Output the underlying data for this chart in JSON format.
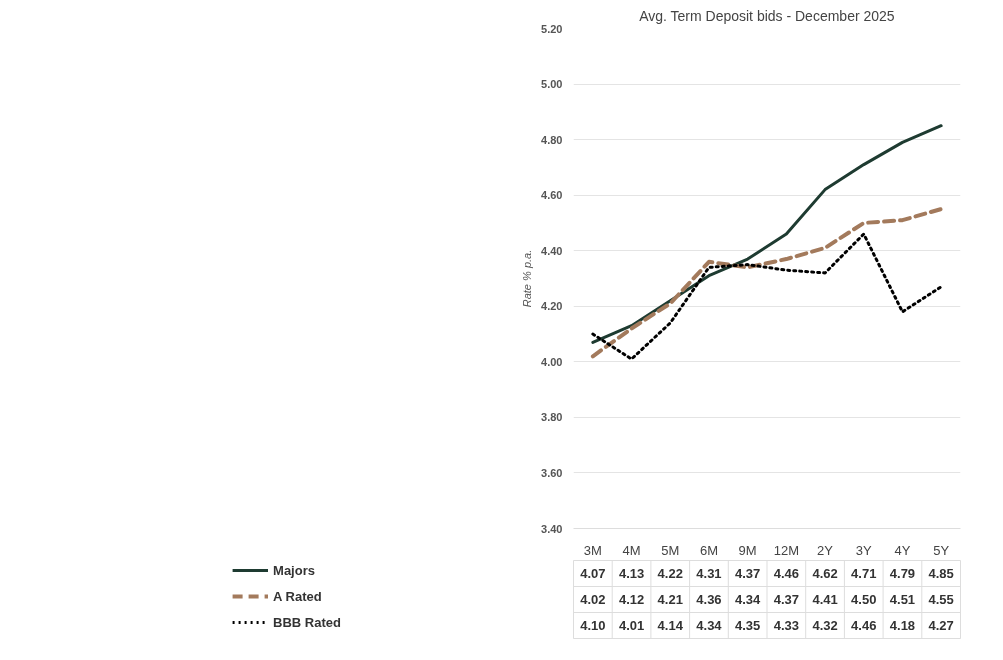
{
  "chart_data": {
    "type": "line",
    "title": "Avg. Term Deposit bids - December 2025",
    "ylabel": "Rate % p.a.",
    "categories": [
      "3M",
      "4M",
      "5M",
      "6M",
      "9M",
      "12M",
      "2Y",
      "3Y",
      "4Y",
      "5Y"
    ],
    "series": [
      {
        "name": "Majors",
        "color": "#1e3b31",
        "line_style": "solid",
        "values": [
          4.07,
          4.13,
          4.22,
          4.31,
          4.37,
          4.46,
          4.62,
          4.71,
          4.79,
          4.85
        ],
        "value_labels": [
          "4.07",
          "4.13",
          "4.22",
          "4.31",
          "4.37",
          "4.46",
          "4.62",
          "4.71",
          "4.79",
          "4.85"
        ]
      },
      {
        "name": "A Rated",
        "color": "#a37a5c",
        "line_style": "dashed",
        "values": [
          4.02,
          4.12,
          4.21,
          4.36,
          4.34,
          4.37,
          4.41,
          4.5,
          4.51,
          4.55
        ],
        "value_labels": [
          "4.02",
          "4.12",
          "4.21",
          "4.36",
          "4.34",
          "4.37",
          "4.41",
          "4.50",
          "4.51",
          "4.55"
        ]
      },
      {
        "name": "BBB Rated",
        "color": "#000000",
        "line_style": "dotted",
        "values": [
          4.1,
          4.01,
          4.14,
          4.34,
          4.35,
          4.33,
          4.32,
          4.46,
          4.18,
          4.27
        ],
        "value_labels": [
          "4.10",
          "4.01",
          "4.14",
          "4.34",
          "4.35",
          "4.33",
          "4.32",
          "4.46",
          "4.18",
          "4.27"
        ]
      }
    ],
    "ylim": [
      3.4,
      5.2
    ],
    "yticks": [
      {
        "value": 3.4,
        "label": "3.40"
      },
      {
        "value": 3.6,
        "label": "3.60"
      },
      {
        "value": 3.8,
        "label": "3.80"
      },
      {
        "value": 4.0,
        "label": "4.00"
      },
      {
        "value": 4.2,
        "label": "4.20"
      },
      {
        "value": 4.4,
        "label": "4.40"
      },
      {
        "value": 4.6,
        "label": "4.60"
      },
      {
        "value": 4.8,
        "label": "4.80"
      },
      {
        "value": 5.0,
        "label": "5.00"
      },
      {
        "value": 5.2,
        "label": "5.20"
      }
    ],
    "grid": "y",
    "legend": "bottom",
    "marker": "none"
  }
}
